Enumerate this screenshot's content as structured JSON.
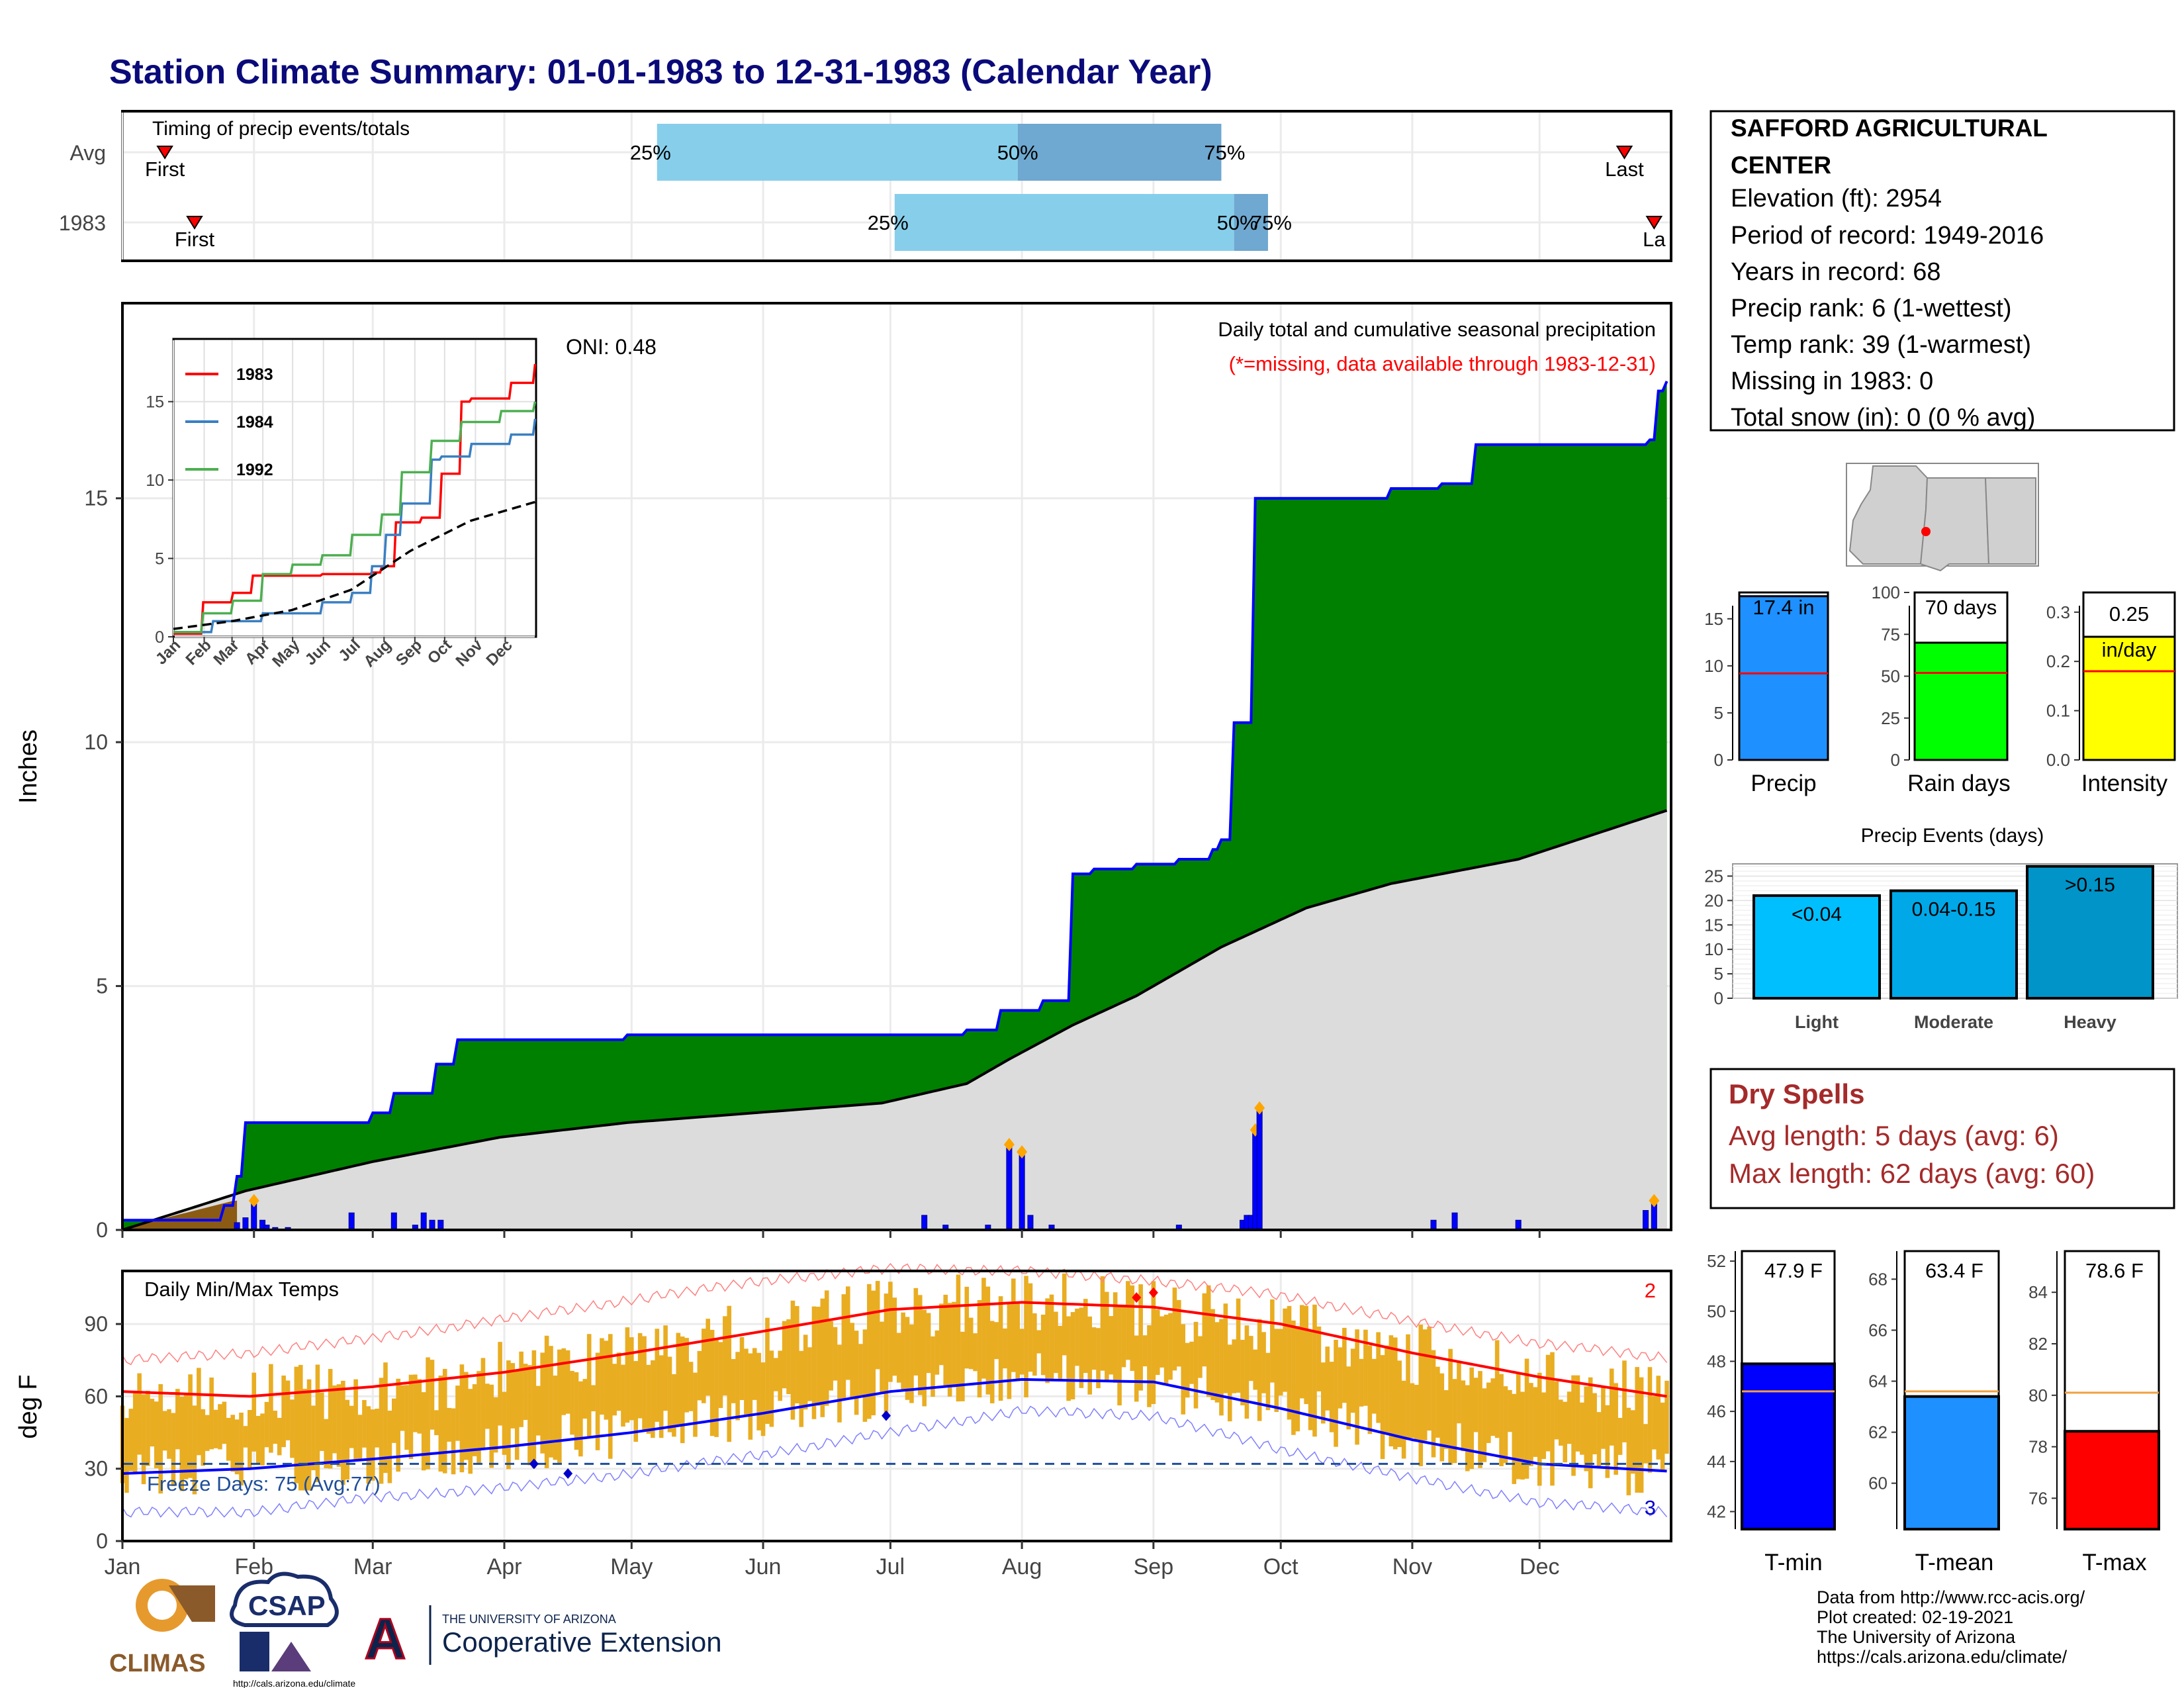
{
  "title": "Station Climate Summary: 01-01-1983 to 12-31-1983 (Calendar Year)",
  "colors": {
    "title": "#0a0a7a",
    "precip_fill": "#008000",
    "normal_fill": "#dcdcdc",
    "line_blue": "#0000ff",
    "quartile_light": "#87ceeb",
    "quartile_dark": "#6fa8d0",
    "dryspell": "#a52a2a",
    "temp_bar": "#e9ad22",
    "tmax_line": "#ff0000",
    "tmin_line": "#0000ff",
    "marker": "#ffa500"
  },
  "timing_panel": {
    "title": "Timing of precip events/totals",
    "rows": [
      {
        "label": "Avg",
        "first_label": "First",
        "last_label": "Last",
        "q25": "25%",
        "q50": "50%",
        "q75": "75%",
        "first": 11,
        "last": 355,
        "q25_day": 127,
        "q50_day": 212,
        "q75_day": 260
      },
      {
        "label": "1983",
        "first_label": "First",
        "last_label": "La",
        "q25": "25%",
        "q50": "50%",
        "q75": "75%",
        "first": 18,
        "last": 362,
        "q25_day": 183,
        "q50_day": 263,
        "q75_day": 271
      }
    ]
  },
  "precip_panel": {
    "title": "Daily total and cumulative seasonal precipitation",
    "note": "(*=missing, data available through 1983-12-31)",
    "oni": "ONI: 0.48",
    "ylabel": "Inches",
    "yticks": [
      "0",
      "5",
      "10",
      "15"
    ]
  },
  "inset": {
    "legend": [
      "1983",
      "1984",
      "1992"
    ],
    "yticks": [
      "0",
      "5",
      "10",
      "15"
    ],
    "months": [
      "Jan",
      "Feb",
      "Mar",
      "Apr",
      "May",
      "Jun",
      "Jul",
      "Aug",
      "Sep",
      "Oct",
      "Nov",
      "Dec"
    ]
  },
  "temp_panel": {
    "title": "Daily Min/Max Temps",
    "ylabel": "deg F",
    "yticks": [
      "0",
      "30",
      "60",
      "90"
    ],
    "freeze_text": "Freeze Days: 75 (Avg:77)",
    "record_high_count": "2",
    "record_low_count": "3"
  },
  "months": [
    "Jan",
    "Feb",
    "Mar",
    "Apr",
    "May",
    "Jun",
    "Jul",
    "Aug",
    "Sep",
    "Oct",
    "Nov",
    "Dec"
  ],
  "station_info": {
    "name_line1": "SAFFORD AGRICULTURAL",
    "name_line2": "CENTER",
    "elevation": "Elevation (ft): 2954",
    "period": "Period of record: 1949-2016",
    "years": "Years in record: 68",
    "precip_rank": "Precip rank: 6 (1-wettest)",
    "temp_rank": "Temp rank: 39 (1-warmest)",
    "missing": "Missing in 1983: 0",
    "snow": "Total snow (in): 0 (0 % avg)"
  },
  "mini_bars": {
    "precip": {
      "label": "Precip",
      "value_text": "17.4 in",
      "yticks": [
        "0",
        "5",
        "10",
        "15"
      ]
    },
    "rain_days": {
      "label": "Rain days",
      "value_text": "70 days",
      "yticks": [
        "0",
        "25",
        "50",
        "75",
        "100"
      ]
    },
    "intensity": {
      "label": "Intensity",
      "value_text": "0.25",
      "unit_text": "in/day",
      "yticks": [
        "0.0",
        "0.1",
        "0.2",
        "0.3"
      ]
    }
  },
  "precip_events": {
    "title": "Precip Events (days)",
    "bars": [
      {
        "label": "Light",
        "text": "<0.04",
        "color": "#00bfff"
      },
      {
        "label": "Moderate",
        "text": "0.04-0.15",
        "color": "#00a8e8"
      },
      {
        "label": "Heavy",
        "text": ">0.15",
        "color": "#0094c8"
      }
    ],
    "yticks": [
      "0",
      "5",
      "10",
      "15",
      "20",
      "25"
    ]
  },
  "dry_spells": {
    "title": "Dry Spells",
    "avg": "Avg length: 5 days (avg: 6)",
    "max": "Max length: 62 days (avg: 60)"
  },
  "temp_bars": {
    "tmin": {
      "label": "T-min",
      "value_text": "47.9 F",
      "yticks": [
        "42",
        "44",
        "46",
        "48",
        "50",
        "52"
      ]
    },
    "tmean": {
      "label": "T-mean",
      "value_text": "63.4 F",
      "yticks": [
        "60",
        "62",
        "64",
        "66",
        "68"
      ]
    },
    "tmax": {
      "label": "T-max",
      "value_text": "78.6 F",
      "yticks": [
        "76",
        "78",
        "80",
        "82",
        "84"
      ]
    }
  },
  "footer": {
    "credits": [
      "Data from http://www.rcc-acis.org/",
      "Plot created: 02-19-2021",
      "The University of Arizona",
      "https://cals.arizona.edu/climate/"
    ],
    "climas": "CLIMAS",
    "csap": "CSAP",
    "csap_url": "http://cals.arizona.edu/climate",
    "ua_small": "THE UNIVERSITY OF ARIZONA",
    "ua_big": "Cooperative Extension",
    "ua_letter": "A"
  },
  "chart_data": [
    {
      "type": "area",
      "title": "Daily total and cumulative seasonal precipitation",
      "ylabel": "Inches",
      "ylim": [
        0,
        19
      ],
      "series": [
        {
          "name": "1983",
          "x": [
            1,
            25,
            28,
            30,
            35,
            60,
            65,
            75,
            80,
            120,
            150,
            200,
            208,
            218,
            225,
            230,
            240,
            250,
            258,
            260,
            263,
            268,
            300,
            312,
            320,
            361,
            363,
            365
          ],
          "values": [
            0.2,
            0.5,
            1.1,
            2.2,
            2.2,
            2.4,
            2.8,
            3.4,
            3.9,
            4.0,
            4.0,
            4.1,
            4.5,
            4.7,
            7.3,
            7.4,
            7.5,
            7.6,
            7.8,
            8.0,
            10.4,
            15.0,
            15.2,
            15.3,
            16.1,
            16.2,
            17.2,
            17.4
          ]
        },
        {
          "name": "normal",
          "x": [
            1,
            30,
            60,
            90,
            120,
            150,
            180,
            200,
            210,
            225,
            240,
            260,
            280,
            300,
            330,
            365
          ],
          "values": [
            0.0,
            0.8,
            1.4,
            1.9,
            2.2,
            2.4,
            2.6,
            3.0,
            3.5,
            4.2,
            4.8,
            5.8,
            6.6,
            7.1,
            7.6,
            8.6
          ]
        }
      ],
      "daily_precip": {
        "x": [
          28,
          30,
          32,
          34,
          35,
          37,
          40,
          55,
          65,
          70,
          72,
          74,
          76,
          190,
          195,
          205,
          210,
          213,
          215,
          220,
          250,
          265,
          266,
          267,
          268,
          269,
          310,
          315,
          330,
          360,
          362
        ],
        "values": [
          0.15,
          0.25,
          0.6,
          0.2,
          0.1,
          0.05,
          0.05,
          0.35,
          0.35,
          0.1,
          0.35,
          0.2,
          0.2,
          0.3,
          0.1,
          0.1,
          1.75,
          1.6,
          0.3,
          0.1,
          0.1,
          0.2,
          0.3,
          0.3,
          2.05,
          2.5,
          0.2,
          0.35,
          0.2,
          0.4,
          0.6
        ]
      }
    },
    {
      "type": "line",
      "title": "",
      "ylim": [
        0,
        19
      ],
      "series": [
        {
          "name": "1983",
          "x": [
            1,
            30,
            60,
            80,
            150,
            200,
            210,
            225,
            250,
            270,
            290,
            300,
            340,
            365
          ],
          "values": [
            0.2,
            2.2,
            2.8,
            3.9,
            4.0,
            4.1,
            4.5,
            7.3,
            7.6,
            10.4,
            15.0,
            15.2,
            16.2,
            17.4
          ]
        },
        {
          "name": "1984",
          "x": [
            1,
            40,
            90,
            150,
            180,
            200,
            215,
            230,
            260,
            270,
            300,
            340,
            365
          ],
          "values": [
            0.3,
            1.0,
            1.5,
            2.2,
            2.8,
            4.5,
            6.5,
            8.5,
            11.3,
            11.5,
            12.3,
            12.9,
            13.9
          ]
        },
        {
          "name": "1992",
          "x": [
            1,
            30,
            60,
            90,
            120,
            150,
            180,
            210,
            230,
            260,
            290,
            330,
            365
          ],
          "values": [
            0.3,
            1.5,
            2.3,
            4.0,
            4.6,
            5.2,
            6.5,
            7.8,
            10.5,
            12.5,
            13.7,
            14.4,
            15.0
          ]
        },
        {
          "name": "normal",
          "x": [
            1,
            60,
            120,
            180,
            240,
            300,
            365
          ],
          "values": [
            0.5,
            1.0,
            1.7,
            3.0,
            5.5,
            7.4,
            8.6
          ]
        }
      ]
    },
    {
      "type": "line",
      "title": "Daily Min/Max Temps",
      "ylabel": "deg F",
      "ylim": [
        0,
        112
      ],
      "series": [
        {
          "name": "tmax",
          "x": [
            1,
            31,
            60,
            91,
            121,
            152,
            182,
            213,
            244,
            274,
            305,
            335,
            365
          ],
          "values": [
            62,
            60,
            64,
            70,
            78,
            87,
            96,
            99,
            97,
            90,
            78,
            68,
            60
          ]
        },
        {
          "name": "tmin",
          "x": [
            1,
            31,
            60,
            91,
            121,
            152,
            182,
            213,
            244,
            274,
            305,
            335,
            365
          ],
          "values": [
            28,
            30,
            34,
            39,
            45,
            53,
            62,
            67,
            66,
            55,
            42,
            32,
            29
          ]
        },
        {
          "name": "record_high",
          "x": [
            1,
            31,
            60,
            91,
            121,
            152,
            182,
            213,
            244,
            274,
            305,
            335,
            365
          ],
          "values": [
            75,
            78,
            84,
            92,
            100,
            108,
            113,
            112,
            108,
            102,
            91,
            82,
            76
          ]
        },
        {
          "name": "record_low",
          "x": [
            1,
            31,
            60,
            91,
            121,
            152,
            182,
            213,
            244,
            274,
            305,
            335,
            365
          ],
          "values": [
            12,
            12,
            18,
            22,
            28,
            36,
            45,
            54,
            52,
            38,
            26,
            16,
            12
          ]
        }
      ],
      "freeze_line": 32
    },
    {
      "type": "bar",
      "categories": [
        "Precip",
        "Rain days",
        "Intensity"
      ],
      "values": [
        17.4,
        70,
        0.25
      ],
      "normals": [
        9.2,
        52,
        0.18
      ]
    },
    {
      "type": "bar",
      "title": "Precip Events (days)",
      "categories": [
        "Light",
        "Moderate",
        "Heavy"
      ],
      "values": [
        21,
        22,
        27
      ]
    },
    {
      "type": "bar",
      "categories": [
        "T-min",
        "T-mean",
        "T-max"
      ],
      "values": [
        47.9,
        63.4,
        78.6
      ],
      "normals": [
        46.8,
        63.6,
        80.1
      ]
    }
  ]
}
